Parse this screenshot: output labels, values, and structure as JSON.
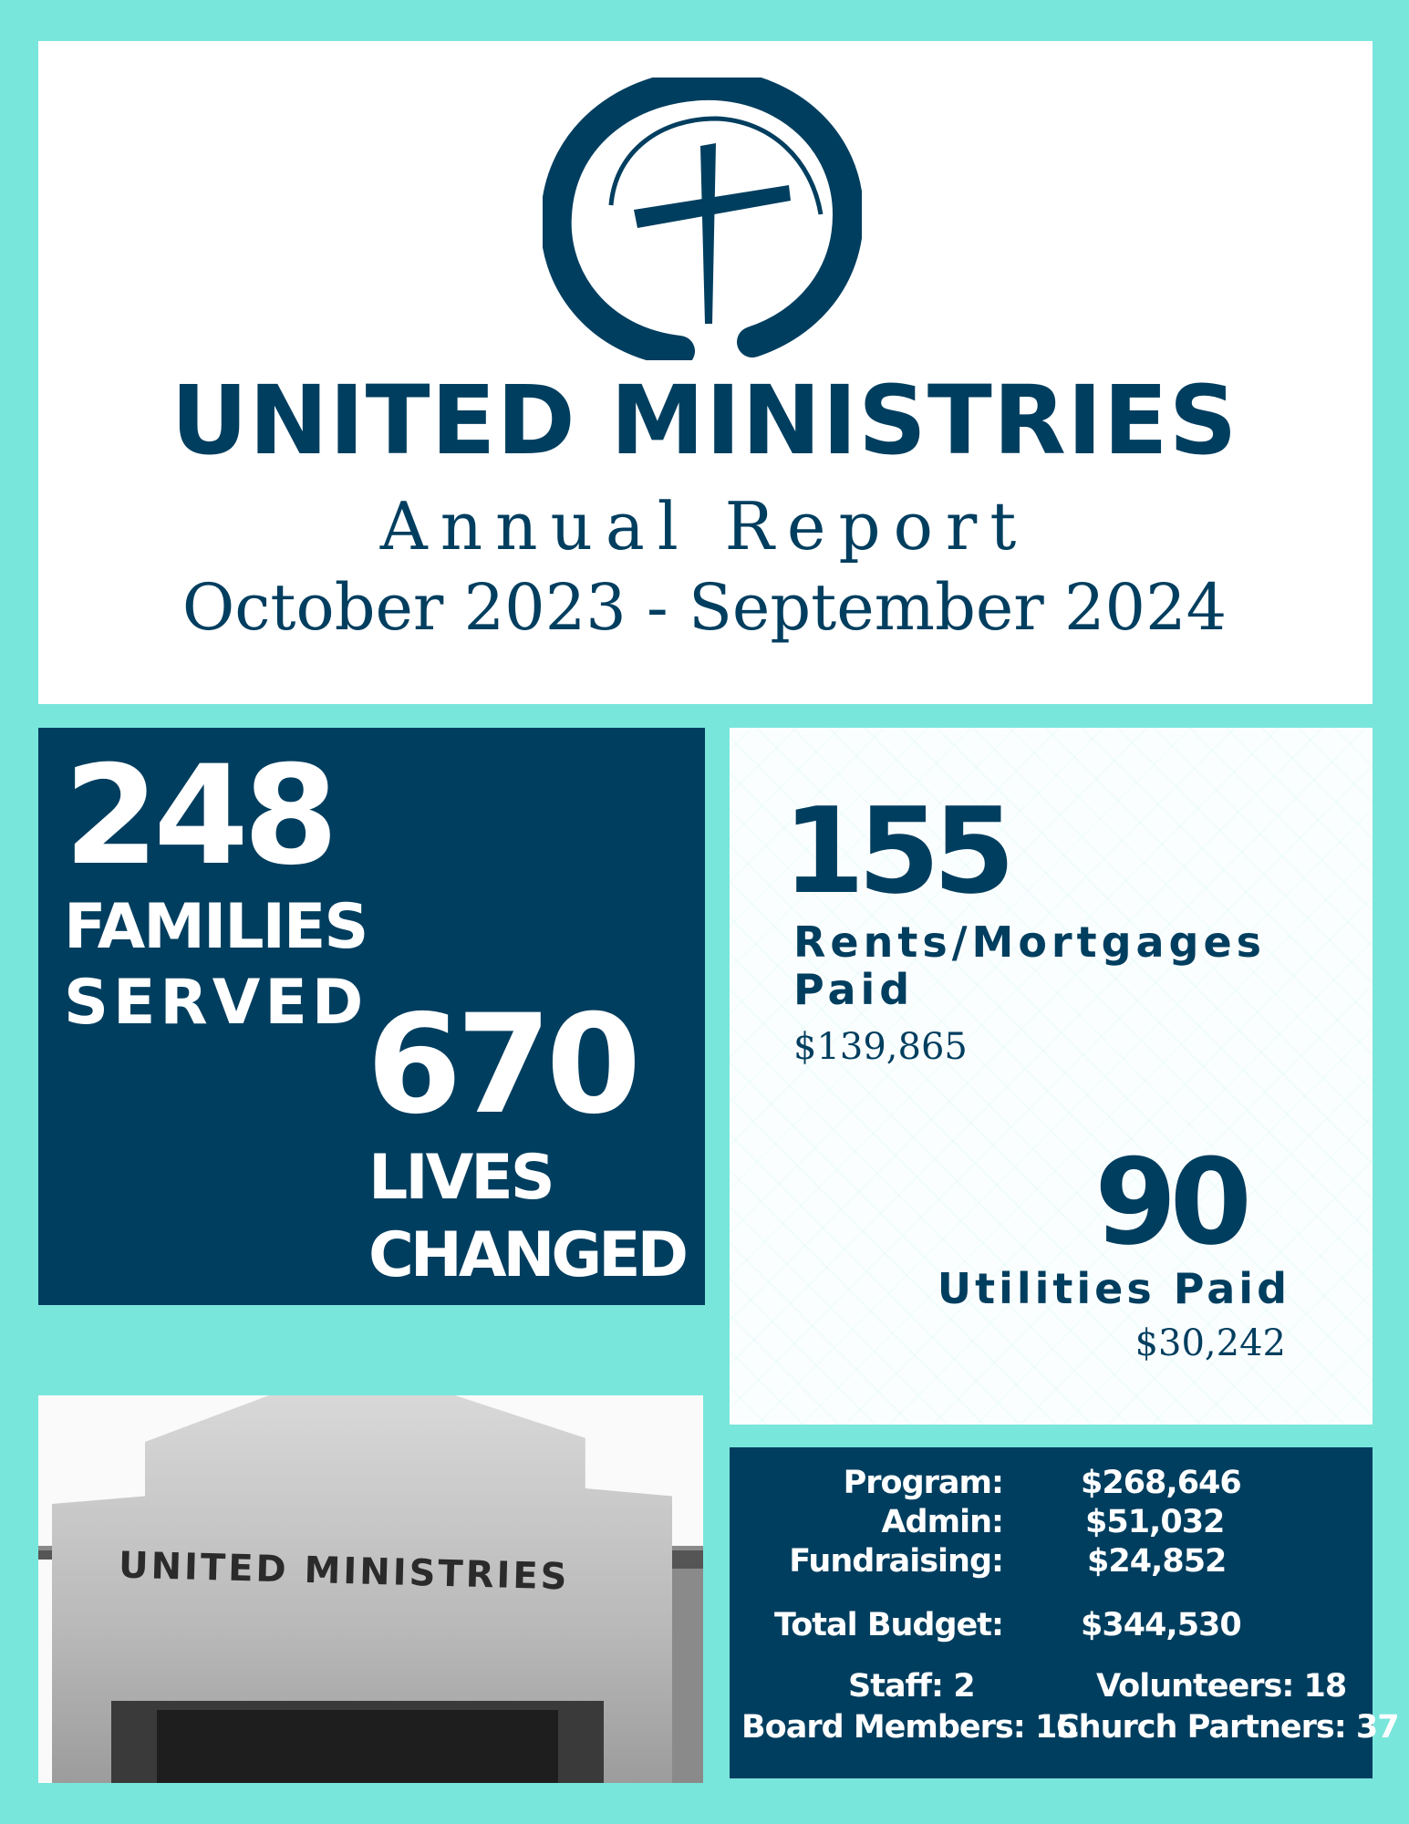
{
  "header": {
    "logo_alt": "cross-in-circle-logo",
    "title": "UNITED MINISTRIES",
    "subtitle": "Annual Report",
    "period": "October 2023 - September 2024"
  },
  "stats": {
    "families_count": "248",
    "families_label_1": "FAMILIES",
    "families_label_2": "SERVED",
    "lives_count": "670",
    "lives_label_1": "LIVES",
    "lives_label_2": "CHANGED",
    "rents_count": "155",
    "rents_label_1": "Rents/Mortgages",
    "rents_label_2": "Paid",
    "rents_amount": "$139,865",
    "utilities_count": "90",
    "utilities_label": "Utilities Paid",
    "utilities_amount": "$30,242"
  },
  "photo": {
    "sign_text": "UNITED MINISTRIES"
  },
  "budget": {
    "rows": [
      {
        "label": "Program:",
        "value": "$268,646"
      },
      {
        "label": "Admin:",
        "value": "$51,032"
      },
      {
        "label": "Fundraising:",
        "value": "$24,852"
      },
      {
        "label": "Total Budget:",
        "value": "$344,530"
      }
    ],
    "staff": "Staff: 2",
    "volunteers": "Volunteers: 18",
    "board": "Board Members: 15",
    "partners": "Church Partners: 37"
  },
  "colors": {
    "background": "#79e6dc",
    "navy": "#003e5f",
    "white": "#ffffff"
  }
}
